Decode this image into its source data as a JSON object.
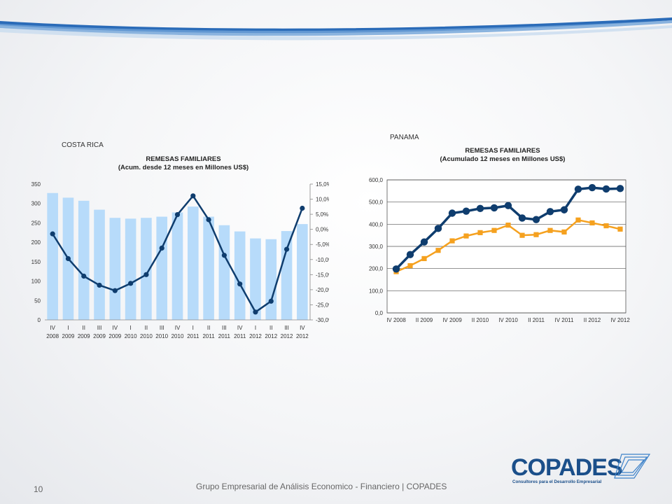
{
  "footer": {
    "text": "Grupo Empresarial de Análisis Economico - Financiero | COPADES",
    "page_number": "10"
  },
  "logo": {
    "name": "COPADES",
    "tagline": "Consultores para el Desarrollo Empresarial"
  },
  "colors": {
    "bar": "#b7dbfa",
    "line_dark": "#0f3d6e",
    "line_orange": "#f5a11f",
    "swoosh": "#1f5aa6"
  },
  "costa_rica": {
    "country": "COSTA RICA"
  },
  "panama": {
    "country": "PANAMA"
  },
  "chart_data": [
    {
      "type": "bar",
      "country": "COSTA RICA",
      "title": "REMESAS FAMILIARES",
      "subtitle": "(Acum. desde 12 meses en Millones US$)",
      "categories": [
        [
          "IV",
          "2008"
        ],
        [
          "I",
          "2009"
        ],
        [
          "II",
          "2009"
        ],
        [
          "III",
          "2009"
        ],
        [
          "IV",
          "2009"
        ],
        [
          "I",
          "2010"
        ],
        [
          "II",
          "2010"
        ],
        [
          "III",
          "2010"
        ],
        [
          "IV",
          "2010"
        ],
        [
          "I",
          "2011"
        ],
        [
          "II",
          "2011"
        ],
        [
          "III",
          "2011"
        ],
        [
          "IV",
          "2011"
        ],
        [
          "I",
          "2012"
        ],
        [
          "II",
          "2012"
        ],
        [
          "III",
          "2012"
        ],
        [
          "IV",
          "2012"
        ]
      ],
      "bars": [
        327,
        315,
        307,
        284,
        263,
        261,
        263,
        266,
        277,
        292,
        266,
        244,
        228,
        210,
        208,
        229,
        247
      ],
      "line": [
        -1.5,
        -9.7,
        -15.5,
        -18.5,
        -20.3,
        -17.9,
        -15.0,
        -6.2,
        4.9,
        11.1,
        3.2,
        -8.6,
        -18.1,
        -27.4,
        -23.8,
        -6.6,
        7.0
      ],
      "y_left": {
        "min": 0,
        "max": 350,
        "ticks": [
          "0",
          "50",
          "100",
          "150",
          "200",
          "250",
          "300",
          "350"
        ]
      },
      "y_right": {
        "min": -30,
        "max": 15,
        "ticks": [
          "-30,0%",
          "-25,0%",
          "-20,0%",
          "-15,0%",
          "-10,0%",
          "-5,0%",
          "0,0%",
          "5,0%",
          "10,0%",
          "15,0%"
        ]
      },
      "grid": false
    },
    {
      "type": "line",
      "country": "PANAMA",
      "title": "REMESAS FAMILIARES",
      "subtitle": "(Acumulado 12 meses en Millones US$)",
      "x_labels": [
        "IV 2008",
        "II 2009",
        "IV 2009",
        "II 2010",
        "IV 2010",
        "II 2011",
        "IV 2011",
        "II 2012",
        "IV 2012"
      ],
      "series": [
        {
          "values": [
            198,
            263,
            320,
            381,
            450,
            459,
            471,
            474,
            484,
            428,
            421,
            457,
            465,
            558,
            565,
            559,
            561
          ]
        },
        {
          "values": [
            186,
            213,
            245,
            282,
            325,
            347,
            362,
            372,
            396,
            350,
            353,
            372,
            365,
            419,
            406,
            393,
            378
          ]
        }
      ],
      "y": {
        "min": 0,
        "max": 600,
        "ticks": [
          "0,0",
          "100,0",
          "200,0",
          "300,0",
          "400,0",
          "500,0",
          "600,0"
        ]
      },
      "grid": true
    }
  ]
}
